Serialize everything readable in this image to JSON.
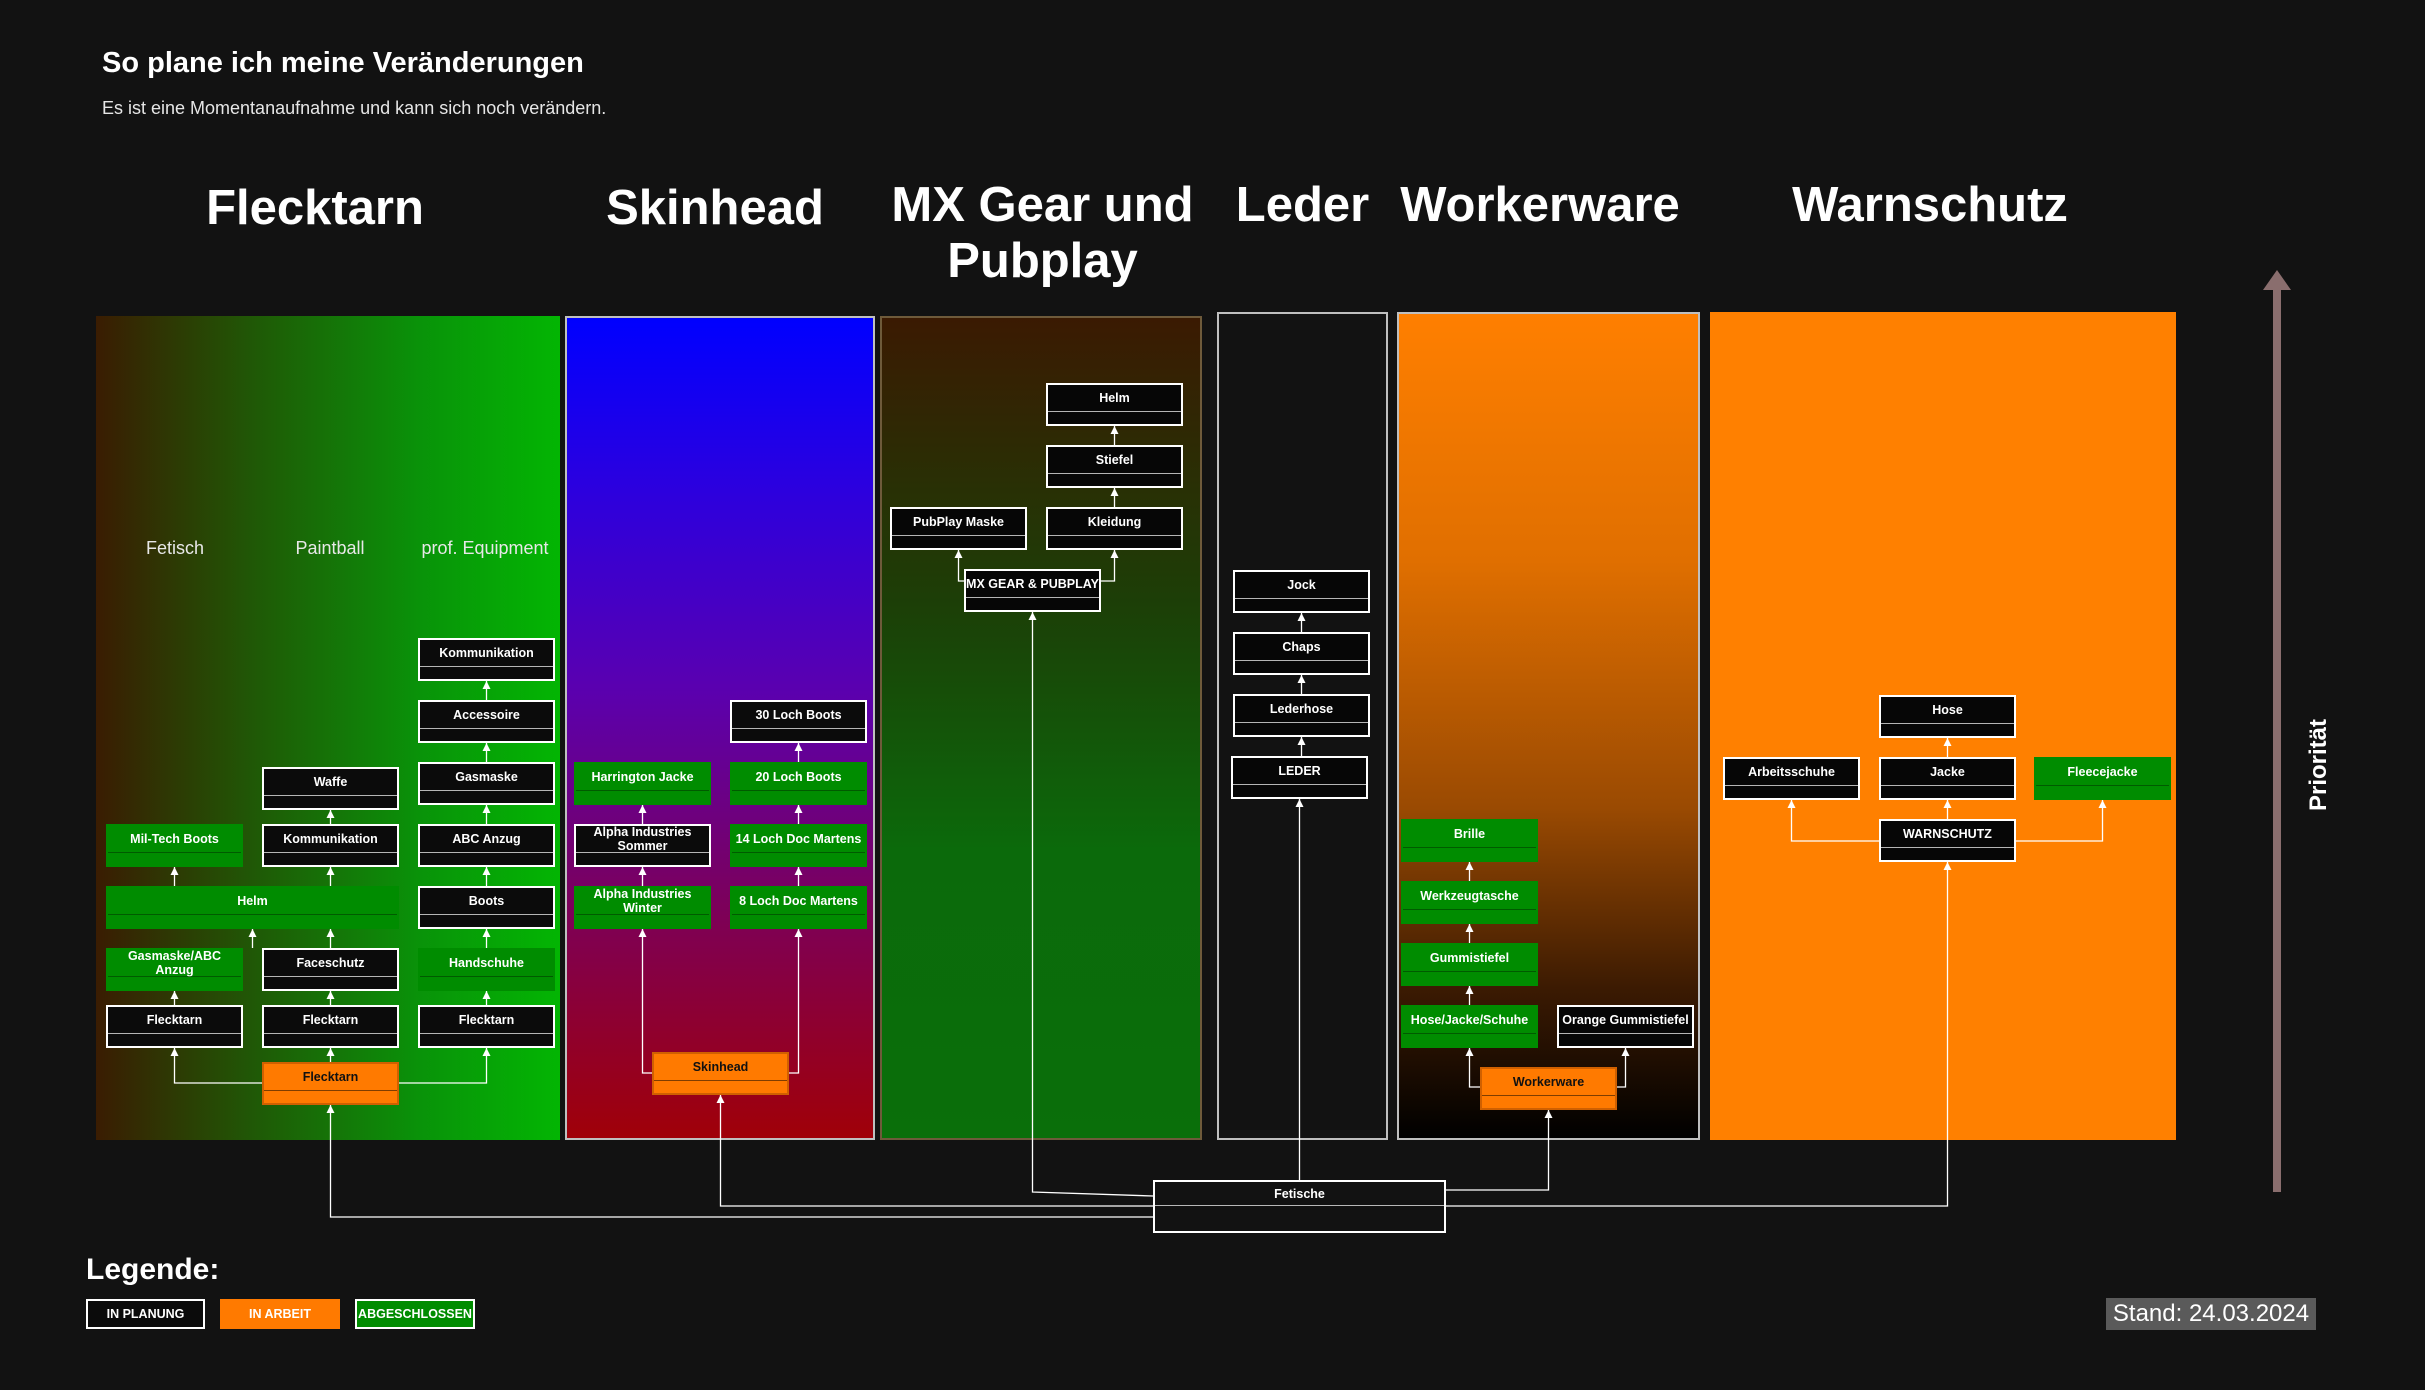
{
  "header": {
    "title": "So plane ich meine Veränderungen",
    "subtitle": "Es ist eine Momentanaufnahme und kann sich noch verändern."
  },
  "categories": [
    "Flecktarn",
    "Skinhead",
    "MX Gear und Pubplay",
    "Leder",
    "Workerware",
    "Warnschutz"
  ],
  "flecktarn_groups": [
    "Fetisch",
    "Paintball",
    "prof. Equipment"
  ],
  "status_colors": {
    "planned": "#0b0b0b",
    "in_progress": "#ff7a00",
    "done": "#008c00"
  },
  "nodes": {
    "fetisch_root": "Fetische",
    "fl_root": "Flecktarn",
    "fl_fet_base": "Flecktarn",
    "fl_fet_mask": "Gasmaske/ABC Anzug",
    "fl_fet_helm": "Helm",
    "fl_fet_boots": "Mil-Tech Boots",
    "fl_pb_base": "Flecktarn",
    "fl_pb_face": "Faceschutz",
    "fl_pb_komm": "Kommunikation",
    "fl_pb_waffe": "Waffe",
    "fl_pe_base": "Flecktarn",
    "fl_pe_hand": "Handschuhe",
    "fl_pe_boots": "Boots",
    "fl_pe_abc": "ABC Anzug",
    "fl_pe_gas": "Gasmaske",
    "fl_pe_acc": "Accessoire",
    "fl_pe_komm": "Kommunikation",
    "sk_root": "Skinhead",
    "sk_winter": "Alpha Industries Winter",
    "sk_sommer": "Alpha Industries Sommer",
    "sk_harrington": "Harrington Jacke",
    "sk_8": "8 Loch Doc Martens",
    "sk_14": "14 Loch Doc Martens",
    "sk_20": "20 Loch Boots",
    "sk_30": "30 Loch Boots",
    "mx_root": "MX GEAR & PUBPLAY",
    "mx_maske": "PubPlay Maske",
    "mx_kleidung": "Kleidung",
    "mx_stiefel": "Stiefel",
    "mx_helm": "Helm",
    "le_root": "LEDER",
    "le_hose": "Lederhose",
    "le_chaps": "Chaps",
    "le_jock": "Jock",
    "wo_root": "Workerware",
    "wo_hjs": "Hose/Jacke/Schuhe",
    "wo_gummi": "Gummistiefel",
    "wo_werkzeug": "Werkzeugtasche",
    "wo_brille": "Brille",
    "wo_orange": "Orange Gummistiefel",
    "wa_root": "WARNSCHUTZ",
    "wa_arbeit": "Arbeitsschuhe",
    "wa_jacke": "Jacke",
    "wa_hose": "Hose",
    "wa_fleece": "Fleecejacke"
  },
  "legend": {
    "title": "Legende:",
    "planned": "IN PLANUNG",
    "in_progress": "IN ARBEIT",
    "done": "ABGESCHLOSSEN"
  },
  "axis": {
    "label": "Priorität"
  },
  "footer": {
    "stand": "Stand: 24.03.2024"
  }
}
